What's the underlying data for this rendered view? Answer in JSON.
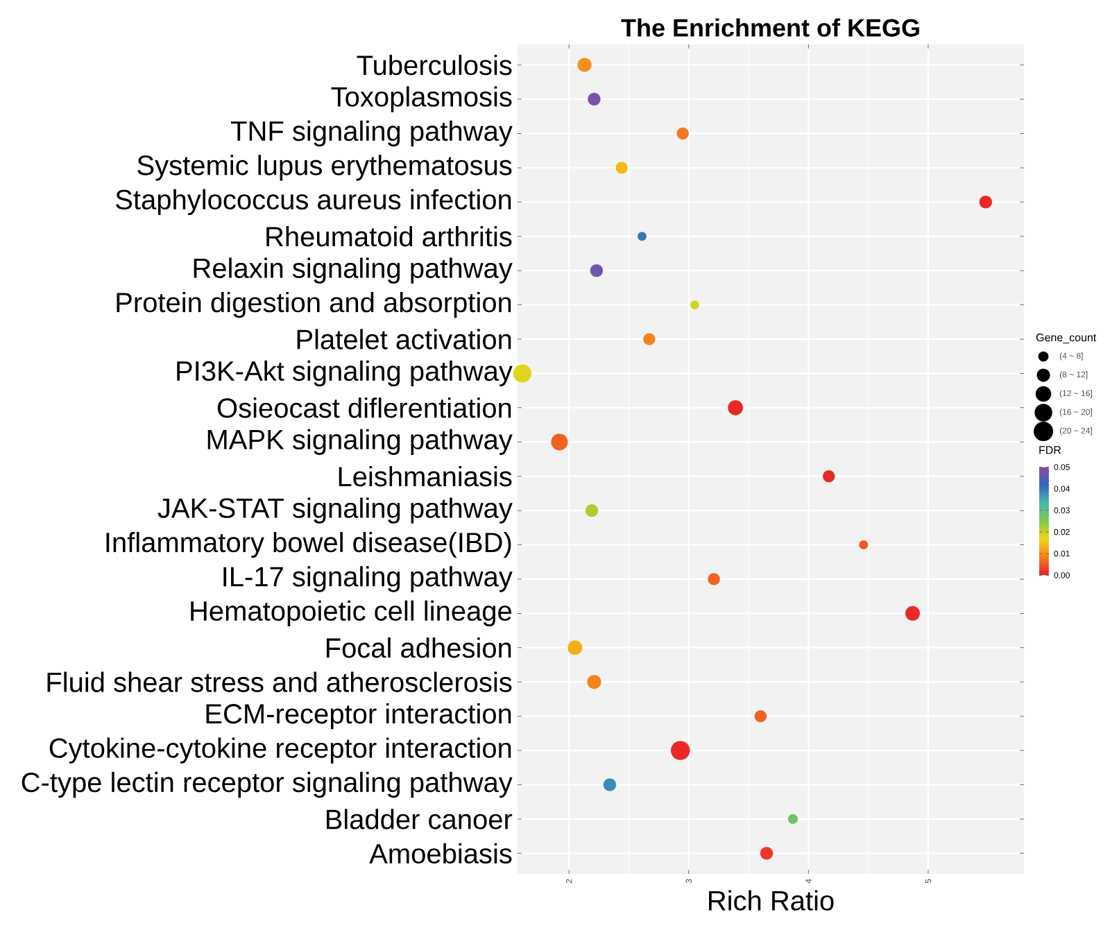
{
  "chart_data": {
    "type": "bubble",
    "title": "The Enrichment of KEGG",
    "xlabel": "Rich Ratio",
    "legend_title": "Gene_count",
    "clabel": "FDR",
    "categories": [
      "Tuberculosis",
      "Toxoplasmosis",
      "TNF signaling pathway",
      "Systemic lupus erythematosus",
      "Staphylococcus aureus infection",
      "Rheumatoid arthritis",
      "Relaxin signaling pathway",
      "Protein digestion and absorption",
      "Platelet activation",
      "PI3K-Akt signaling pathway",
      "Osieocast diflerentiation",
      "MAPK signaling pathway",
      "Leishmaniasis",
      "JAK-STAT signaling pathway",
      "Inflammatory bowel disease(IBD)",
      "IL-17 signaling pathway",
      "Hematopoietic cell lineage",
      "Focal adhesion",
      "Fluid shear stress and atherosclerosis",
      "ECM-receptor interaction",
      "Cytokine-cytokine receptor interaction",
      "C-type lectin receptor signaling pathway",
      "Bladder canoer",
      "Amoebiasis"
    ],
    "values": [
      2.13,
      2.21,
      2.95,
      2.44,
      5.48,
      2.61,
      2.23,
      3.05,
      2.67,
      1.61,
      3.39,
      1.92,
      4.17,
      2.19,
      4.46,
      3.21,
      4.87,
      2.05,
      2.21,
      3.6,
      2.93,
      2.34,
      3.87,
      3.65
    ],
    "sizes": [
      12,
      10,
      9,
      9,
      10,
      5,
      10,
      5,
      9,
      20,
      14,
      17,
      9,
      10,
      5,
      9,
      13,
      13,
      12,
      9,
      22,
      10,
      6,
      10
    ],
    "cvalues": [
      0.01,
      0.048,
      0.008,
      0.014,
      0.001,
      0.04,
      0.047,
      0.019,
      0.009,
      0.018,
      0.001,
      0.006,
      0.001,
      0.022,
      0.005,
      0.006,
      0.001,
      0.013,
      0.009,
      0.006,
      0.001,
      0.038,
      0.028,
      0.002
    ],
    "size_legend": [
      {
        "value": 6,
        "label": "(4 ~ 8]"
      },
      {
        "value": 10,
        "label": "(8 ~ 12]"
      },
      {
        "value": 14,
        "label": "(12 ~ 16]"
      },
      {
        "value": 18,
        "label": "(16 ~ 20]"
      },
      {
        "value": 22,
        "label": "(20 ~ 24]"
      }
    ],
    "clim": [
      0,
      0.05
    ],
    "cticks": [
      {
        "value": 0,
        "label": "0.00"
      },
      {
        "value": 0.01,
        "label": "0.01"
      },
      {
        "value": 0.02,
        "label": "0.02"
      },
      {
        "value": 0.03,
        "label": "0.03"
      },
      {
        "value": 0.04,
        "label": "0.04"
      },
      {
        "value": 0.05,
        "label": "0.05"
      }
    ],
    "xlim": [
      1.57,
      5.8
    ],
    "xticks": [
      2,
      3,
      4,
      5
    ],
    "grid": true,
    "orientation": "horizontal"
  }
}
